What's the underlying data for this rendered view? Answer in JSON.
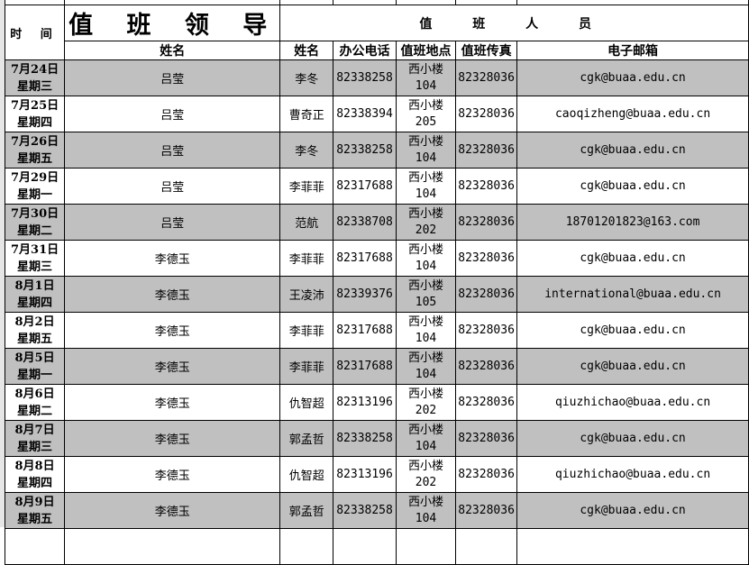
{
  "header": {
    "time": "时 间",
    "leader_title": "值 班 领 导",
    "staff_title": "值 班 人 员",
    "columns": [
      "姓名",
      "姓名",
      "办公电话",
      "值班地点",
      "值班传真",
      "电子邮箱"
    ]
  },
  "rows": [
    {
      "date": "7月24日",
      "weekday": "星期三",
      "leader": "吕莹",
      "name": "李冬",
      "phone": "82338258",
      "loc1": "西小楼",
      "loc2": "104",
      "fax": "82328036",
      "email": "cgk@buaa.edu.cn"
    },
    {
      "date": "7月25日",
      "weekday": "星期四",
      "leader": "吕莹",
      "name": "曹奇正",
      "phone": "82338394",
      "loc1": "西小楼",
      "loc2": "205",
      "fax": "82328036",
      "email": "caoqizheng@buaa.edu.cn"
    },
    {
      "date": "7月26日",
      "weekday": "星期五",
      "leader": "吕莹",
      "name": "李冬",
      "phone": "82338258",
      "loc1": "西小楼",
      "loc2": "104",
      "fax": "82328036",
      "email": "cgk@buaa.edu.cn"
    },
    {
      "date": "7月29日",
      "weekday": "星期一",
      "leader": "吕莹",
      "name": "李菲菲",
      "phone": "82317688",
      "loc1": "西小楼",
      "loc2": "104",
      "fax": "82328036",
      "email": "cgk@buaa.edu.cn"
    },
    {
      "date": "7月30日",
      "weekday": "星期二",
      "leader": "吕莹",
      "name": "范航",
      "phone": "82338708",
      "loc1": "西小楼",
      "loc2": "202",
      "fax": "82328036",
      "email": "18701201823@163.com"
    },
    {
      "date": "7月31日",
      "weekday": "星期三",
      "leader": "李德玉",
      "name": "李菲菲",
      "phone": "82317688",
      "loc1": "西小楼",
      "loc2": "104",
      "fax": "82328036",
      "email": "cgk@buaa.edu.cn"
    },
    {
      "date": "8月1日",
      "weekday": "星期四",
      "leader": "李德玉",
      "name": "王凌沛",
      "phone": "82339376",
      "loc1": "西小楼",
      "loc2": "105",
      "fax": "82328036",
      "email": "international@buaa.edu.cn"
    },
    {
      "date": "8月2日",
      "weekday": "星期五",
      "leader": "李德玉",
      "name": "李菲菲",
      "phone": "82317688",
      "loc1": "西小楼",
      "loc2": "104",
      "fax": "82328036",
      "email": "cgk@buaa.edu.cn"
    },
    {
      "date": "8月5日",
      "weekday": "星期一",
      "leader": "李德玉",
      "name": "李菲菲",
      "phone": "82317688",
      "loc1": "西小楼",
      "loc2": "104",
      "fax": "82328036",
      "email": "cgk@buaa.edu.cn"
    },
    {
      "date": "8月6日",
      "weekday": "星期二",
      "leader": "李德玉",
      "name": "仇智超",
      "phone": "82313196",
      "loc1": "西小楼",
      "loc2": "202",
      "fax": "82328036",
      "email": "qiuzhichao@buaa.edu.cn"
    },
    {
      "date": "8月7日",
      "weekday": "星期三",
      "leader": "李德玉",
      "name": "郭孟哲",
      "phone": "82338258",
      "loc1": "西小楼",
      "loc2": "104",
      "fax": "82328036",
      "email": "cgk@buaa.edu.cn"
    },
    {
      "date": "8月8日",
      "weekday": "星期四",
      "leader": "李德玉",
      "name": "仇智超",
      "phone": "82313196",
      "loc1": "西小楼",
      "loc2": "202",
      "fax": "82328036",
      "email": "qiuzhichao@buaa.edu.cn"
    },
    {
      "date": "8月9日",
      "weekday": "星期五",
      "leader": "李德玉",
      "name": "郭孟哲",
      "phone": "82338258",
      "loc1": "西小楼",
      "loc2": "104",
      "fax": "82328036",
      "email": "cgk@buaa.edu.cn"
    }
  ]
}
